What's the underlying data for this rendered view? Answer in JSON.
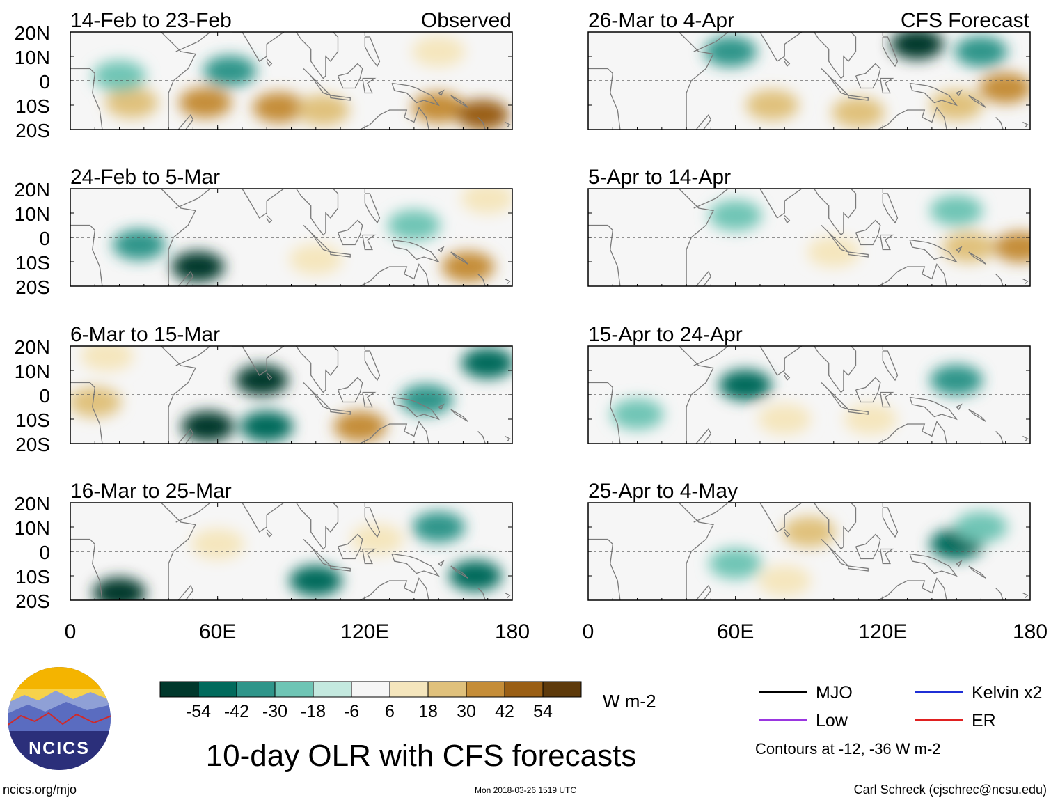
{
  "chart_data": {
    "type": "heatmap",
    "title": "10-day OLR with CFS forecasts",
    "colorbar": {
      "units": "W m-2",
      "ticks": [
        "-54",
        "-42",
        "-30",
        "-18",
        "-6",
        "6",
        "18",
        "30",
        "42",
        "54"
      ],
      "colors": [
        "#00382c",
        "#006a5c",
        "#2f958a",
        "#6fc5b5",
        "#c4e9df",
        "#f6f6f6",
        "#f5e6bd",
        "#e0c17c",
        "#c58d38",
        "#9a5f15",
        "#5e3a0b"
      ]
    },
    "x_ticks": [
      "0",
      "60E",
      "120E",
      "180"
    ],
    "y_ticks": [
      "20N",
      "10N",
      "0",
      "10S",
      "20S"
    ],
    "xlim": [
      0,
      180
    ],
    "ylim": [
      -20,
      20
    ],
    "observed_label": "Observed",
    "forecast_label": "CFS Forecast",
    "panels": {
      "observed": [
        {
          "period": "14-Feb to 23-Feb",
          "cells": [
            {
              "lon": 25,
              "lat": -9,
              "v": 30
            },
            {
              "lon": 55,
              "lat": -9,
              "v": 36
            },
            {
              "lon": 85,
              "lat": -11,
              "v": 42
            },
            {
              "lon": 103,
              "lat": -12,
              "v": 30
            },
            {
              "lon": 150,
              "lat": -11,
              "v": 42
            },
            {
              "lon": 168,
              "lat": -14,
              "v": 54
            },
            {
              "lon": 65,
              "lat": 4,
              "v": -30
            },
            {
              "lon": 20,
              "lat": 2,
              "v": -18
            },
            {
              "lon": 150,
              "lat": 12,
              "v": 18
            }
          ]
        },
        {
          "period": "24-Feb to 5-Mar",
          "cells": [
            {
              "lon": 52,
              "lat": -12,
              "v": -54
            },
            {
              "lon": 28,
              "lat": -3,
              "v": -30
            },
            {
              "lon": 140,
              "lat": 5,
              "v": -18
            },
            {
              "lon": 162,
              "lat": -12,
              "v": 42
            },
            {
              "lon": 100,
              "lat": -9,
              "v": 18
            },
            {
              "lon": 170,
              "lat": 16,
              "v": 18
            }
          ]
        },
        {
          "period": "6-Mar to 15-Mar",
          "cells": [
            {
              "lon": 78,
              "lat": 6,
              "v": -54
            },
            {
              "lon": 56,
              "lat": -13,
              "v": -54
            },
            {
              "lon": 80,
              "lat": -13,
              "v": -42
            },
            {
              "lon": 170,
              "lat": 13,
              "v": -42
            },
            {
              "lon": 145,
              "lat": -2,
              "v": -30
            },
            {
              "lon": 118,
              "lat": -13,
              "v": 42
            },
            {
              "lon": 10,
              "lat": -3,
              "v": 30
            },
            {
              "lon": 15,
              "lat": 16,
              "v": 18
            }
          ]
        },
        {
          "period": "16-Mar to 25-Mar",
          "cells": [
            {
              "lon": 100,
              "lat": -12,
              "v": -42
            },
            {
              "lon": 165,
              "lat": -10,
              "v": -42
            },
            {
              "lon": 20,
              "lat": -17,
              "v": -54
            },
            {
              "lon": 150,
              "lat": 10,
              "v": -30
            },
            {
              "lon": 125,
              "lat": 5,
              "v": 18
            },
            {
              "lon": 60,
              "lat": 3,
              "v": 18
            }
          ]
        }
      ],
      "forecast": [
        {
          "period": "26-Mar to 4-Apr",
          "cells": [
            {
              "lon": 134,
              "lat": 15,
              "v": -54
            },
            {
              "lon": 58,
              "lat": 12,
              "v": -30
            },
            {
              "lon": 160,
              "lat": 12,
              "v": -30
            },
            {
              "lon": 75,
              "lat": -10,
              "v": 30
            },
            {
              "lon": 110,
              "lat": -13,
              "v": 30
            },
            {
              "lon": 170,
              "lat": -3,
              "v": 42
            },
            {
              "lon": 150,
              "lat": -10,
              "v": 30
            }
          ]
        },
        {
          "period": "5-Apr to 14-Apr",
          "cells": [
            {
              "lon": 60,
              "lat": 9,
              "v": -18
            },
            {
              "lon": 150,
              "lat": 11,
              "v": -18
            },
            {
              "lon": 155,
              "lat": -4,
              "v": 30
            },
            {
              "lon": 176,
              "lat": -4,
              "v": 42
            },
            {
              "lon": 100,
              "lat": -6,
              "v": 18
            }
          ]
        },
        {
          "period": "15-Apr to 24-Apr",
          "cells": [
            {
              "lon": 64,
              "lat": 4,
              "v": -42
            },
            {
              "lon": 150,
              "lat": 6,
              "v": -30
            },
            {
              "lon": 20,
              "lat": -8,
              "v": -18
            },
            {
              "lon": 80,
              "lat": -10,
              "v": 18
            },
            {
              "lon": 115,
              "lat": -10,
              "v": 18
            }
          ]
        },
        {
          "period": "25-Apr to 4-May",
          "cells": [
            {
              "lon": 150,
              "lat": 3,
              "v": -42
            },
            {
              "lon": 160,
              "lat": 10,
              "v": -18
            },
            {
              "lon": 90,
              "lat": 8,
              "v": 30
            },
            {
              "lon": 80,
              "lat": -12,
              "v": 18
            },
            {
              "lon": 60,
              "lat": -5,
              "v": -18
            }
          ]
        }
      ]
    },
    "legend": {
      "items": [
        {
          "label": "MJO",
          "color": "#000000"
        },
        {
          "label": "Kelvin x2",
          "color": "#1f2fd6"
        },
        {
          "label": "Low",
          "color": "#9a36e0"
        },
        {
          "label": "ER",
          "color": "#e02020"
        }
      ],
      "note": "Contours at -12, -36 W m-2"
    }
  },
  "footer": {
    "logo_text": "NCICS",
    "url": "ncics.org/mjo",
    "timestamp": "Mon 2018-03-26 1519 UTC",
    "credit": "Carl Schreck (cjschrec@ncsu.edu)"
  }
}
